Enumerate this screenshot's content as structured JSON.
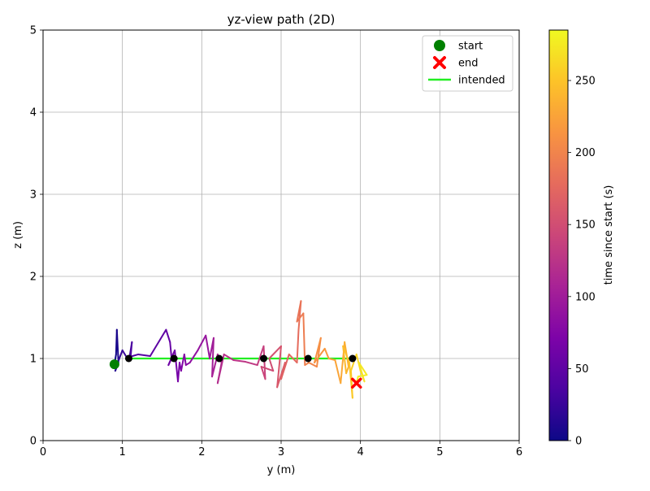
{
  "chart_data": {
    "type": "line",
    "title": "yz-view path (2D)",
    "xlabel": "y (m)",
    "ylabel": "z (m)",
    "xlim": [
      0,
      6
    ],
    "ylim": [
      0,
      5
    ],
    "xticks": [
      "0",
      "1",
      "2",
      "3",
      "4",
      "5",
      "6"
    ],
    "yticks": [
      "0",
      "1",
      "2",
      "3",
      "4",
      "5"
    ],
    "grid": true,
    "legend": {
      "placement": "top-right",
      "entries": [
        {
          "label": "start",
          "marker": "circle",
          "color": "#008000"
        },
        {
          "label": "end",
          "marker": "x",
          "color": "#ff0000"
        },
        {
          "label": "intended",
          "marker": "line",
          "color": "#22ee22"
        }
      ]
    },
    "colorbar": {
      "label": "time since start (s)",
      "range": [
        0,
        285
      ],
      "ticks": [
        "0",
        "50",
        "100",
        "150",
        "200",
        "250"
      ],
      "tick_values": [
        0,
        50,
        100,
        150,
        200,
        250
      ],
      "colormap": "plasma"
    },
    "start": {
      "y": 0.9,
      "z": 0.93
    },
    "end": {
      "y": 3.95,
      "z": 0.7
    },
    "intended": {
      "y": [
        1.08,
        3.9
      ],
      "z": [
        1.0,
        1.0
      ]
    },
    "waypoints": {
      "y": [
        1.08,
        1.65,
        2.22,
        2.78,
        3.34,
        3.9
      ],
      "z": [
        1.0,
        1.0,
        1.0,
        1.0,
        1.0,
        1.0
      ]
    },
    "path": {
      "t": [
        0,
        3,
        6,
        9,
        12,
        16,
        20,
        24,
        28,
        31,
        34,
        38,
        42,
        46,
        50,
        54,
        58,
        60,
        63,
        66,
        69,
        72,
        76,
        80,
        84,
        88,
        92,
        96,
        100,
        104,
        108,
        112,
        116,
        120,
        124,
        128,
        132,
        136,
        140,
        144,
        148,
        152,
        156,
        160,
        164,
        168,
        172,
        176,
        180,
        184,
        188,
        192,
        196,
        200,
        204,
        208,
        212,
        216,
        220,
        224,
        228,
        232,
        236,
        240,
        244,
        248,
        252,
        256,
        260,
        264,
        268,
        272,
        276,
        280,
        285
      ],
      "y": [
        0.9,
        0.92,
        0.93,
        0.95,
        0.91,
        0.96,
        0.93,
        1.0,
        1.05,
        1.1,
        1.12,
        1.09,
        1.2,
        1.35,
        1.55,
        1.6,
        1.62,
        1.58,
        1.66,
        1.7,
        1.72,
        1.74,
        1.78,
        1.8,
        1.85,
        1.95,
        2.05,
        2.1,
        2.15,
        2.13,
        2.2,
        2.25,
        2.2,
        2.28,
        2.4,
        2.55,
        2.7,
        2.78,
        2.8,
        2.75,
        2.9,
        2.85,
        3.0,
        2.95,
        3.05,
        3.0,
        3.1,
        3.2,
        3.22,
        3.25,
        3.2,
        3.28,
        3.3,
        3.35,
        3.45,
        3.5,
        3.42,
        3.55,
        3.6,
        3.68,
        3.75,
        3.8,
        3.85,
        3.82,
        3.78,
        3.86,
        3.9,
        3.88,
        3.95,
        4.0,
        4.05,
        3.98,
        4.08,
        3.97,
        3.95
      ],
      "z": [
        0.93,
        1.05,
        1.35,
        0.95,
        0.85,
        1.0,
        0.92,
        1.1,
        1.02,
        0.98,
        1.2,
        1.02,
        1.05,
        1.03,
        1.35,
        1.2,
        1.0,
        0.92,
        1.1,
        0.72,
        0.95,
        0.85,
        1.05,
        0.92,
        0.95,
        1.1,
        1.28,
        1.0,
        1.25,
        0.78,
        1.05,
        0.95,
        0.7,
        1.05,
        0.98,
        0.96,
        0.92,
        1.15,
        0.75,
        0.9,
        0.85,
        1.0,
        1.15,
        0.65,
        0.95,
        0.75,
        1.05,
        0.95,
        1.35,
        1.7,
        1.45,
        1.55,
        0.92,
        0.95,
        0.9,
        1.25,
        0.95,
        1.12,
        1.0,
        0.98,
        0.7,
        1.2,
        0.9,
        0.82,
        1.15,
        0.95,
        0.52,
        0.85,
        1.05,
        0.85,
        0.72,
        0.95,
        0.8,
        0.78,
        0.7
      ]
    }
  }
}
